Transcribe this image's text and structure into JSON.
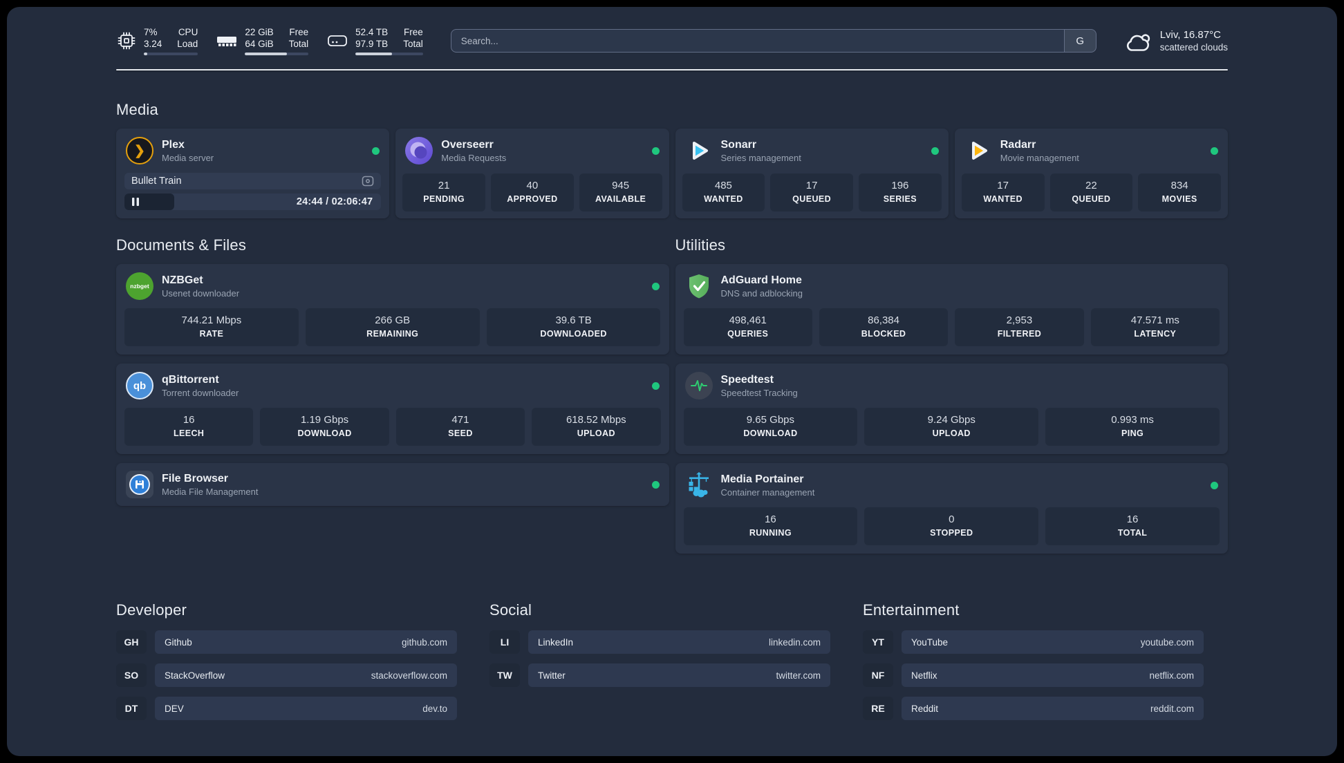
{
  "header": {
    "system_stats": [
      {
        "icon": "cpu-icon",
        "rows": [
          {
            "value": "7%",
            "label": "CPU"
          },
          {
            "value": "3.24",
            "label": "Load"
          }
        ],
        "progress": 7
      },
      {
        "icon": "ram-icon",
        "rows": [
          {
            "value": "22 GiB",
            "label": "Free"
          },
          {
            "value": "64 GiB",
            "label": "Total"
          }
        ],
        "progress": 66
      },
      {
        "icon": "disk-icon",
        "rows": [
          {
            "value": "52.4 TB",
            "label": "Free"
          },
          {
            "value": "97.9 TB",
            "label": "Total"
          }
        ],
        "progress": 54
      }
    ],
    "search": {
      "placeholder": "Search...",
      "engine_button": "G"
    },
    "weather": {
      "location": "Lviv, 16.87°C",
      "condition": "scattered clouds"
    }
  },
  "media": {
    "title": "Media",
    "plex": {
      "title": "Plex",
      "subtitle": "Media server",
      "status": "online",
      "now_playing": "Bullet Train",
      "time_display": "24:44 / 02:06:47",
      "progress": 19.5
    },
    "overseerr": {
      "title": "Overseerr",
      "subtitle": "Media Requests",
      "status": "online",
      "stats": [
        {
          "value": "21",
          "label": "PENDING"
        },
        {
          "value": "40",
          "label": "APPROVED"
        },
        {
          "value": "945",
          "label": "AVAILABLE"
        }
      ]
    },
    "sonarr": {
      "title": "Sonarr",
      "subtitle": "Series management",
      "status": "online",
      "stats": [
        {
          "value": "485",
          "label": "WANTED"
        },
        {
          "value": "17",
          "label": "QUEUED"
        },
        {
          "value": "196",
          "label": "SERIES"
        }
      ]
    },
    "radarr": {
      "title": "Radarr",
      "subtitle": "Movie management",
      "status": "online",
      "stats": [
        {
          "value": "17",
          "label": "WANTED"
        },
        {
          "value": "22",
          "label": "QUEUED"
        },
        {
          "value": "834",
          "label": "MOVIES"
        }
      ]
    }
  },
  "documents": {
    "title": "Documents & Files",
    "nzbget": {
      "title": "NZBGet",
      "subtitle": "Usenet downloader",
      "status": "online",
      "stats": [
        {
          "value": "744.21 Mbps",
          "label": "RATE"
        },
        {
          "value": "266 GB",
          "label": "REMAINING"
        },
        {
          "value": "39.6 TB",
          "label": "DOWNLOADED"
        }
      ]
    },
    "qbittorrent": {
      "title": "qBittorrent",
      "subtitle": "Torrent downloader",
      "status": "online",
      "stats": [
        {
          "value": "16",
          "label": "LEECH"
        },
        {
          "value": "1.19 Gbps",
          "label": "DOWNLOAD"
        },
        {
          "value": "471",
          "label": "SEED"
        },
        {
          "value": "618.52 Mbps",
          "label": "UPLOAD"
        }
      ]
    },
    "filebrowser": {
      "title": "File Browser",
      "subtitle": "Media File Management",
      "status": "online"
    }
  },
  "utilities": {
    "title": "Utilities",
    "adguard": {
      "title": "AdGuard Home",
      "subtitle": "DNS and adblocking",
      "stats": [
        {
          "value": "498,461",
          "label": "QUERIES"
        },
        {
          "value": "86,384",
          "label": "BLOCKED"
        },
        {
          "value": "2,953",
          "label": "FILTERED"
        },
        {
          "value": "47.571 ms",
          "label": "LATENCY"
        }
      ]
    },
    "speedtest": {
      "title": "Speedtest",
      "subtitle": "Speedtest Tracking",
      "stats": [
        {
          "value": "9.65 Gbps",
          "label": "DOWNLOAD"
        },
        {
          "value": "9.24 Gbps",
          "label": "UPLOAD"
        },
        {
          "value": "0.993 ms",
          "label": "PING"
        }
      ]
    },
    "portainer": {
      "title": "Media Portainer",
      "subtitle": "Container management",
      "status": "online",
      "stats": [
        {
          "value": "16",
          "label": "RUNNING"
        },
        {
          "value": "0",
          "label": "STOPPED"
        },
        {
          "value": "16",
          "label": "TOTAL"
        }
      ]
    }
  },
  "bookmarks": {
    "developer": {
      "title": "Developer",
      "links": [
        {
          "abbr": "GH",
          "name": "Github",
          "url": "github.com"
        },
        {
          "abbr": "SO",
          "name": "StackOverflow",
          "url": "stackoverflow.com"
        },
        {
          "abbr": "DT",
          "name": "DEV",
          "url": "dev.to"
        }
      ]
    },
    "social": {
      "title": "Social",
      "links": [
        {
          "abbr": "LI",
          "name": "LinkedIn",
          "url": "linkedin.com"
        },
        {
          "abbr": "TW",
          "name": "Twitter",
          "url": "twitter.com"
        }
      ]
    },
    "entertainment": {
      "title": "Entertainment",
      "links": [
        {
          "abbr": "YT",
          "name": "YouTube",
          "url": "youtube.com"
        },
        {
          "abbr": "NF",
          "name": "Netflix",
          "url": "netflix.com"
        },
        {
          "abbr": "RE",
          "name": "Reddit",
          "url": "reddit.com"
        }
      ]
    }
  },
  "colors": {
    "status_green": "#1fc77e",
    "plex_orange": "#e5a00d",
    "sonarr_blue": "#38c1f1",
    "radarr_yellow": "#fdb50e",
    "nzbget_green": "#4da32f",
    "qbittorrent_blue": "#4a90d9",
    "filebrowser_blue": "#2f80d8",
    "adguard_green": "#63b967",
    "speedtest_pulse_green": "#2ecc71",
    "portainer_blue": "#39b5e8",
    "page_background": "#232c3d",
    "card_background": "#2a3447"
  }
}
